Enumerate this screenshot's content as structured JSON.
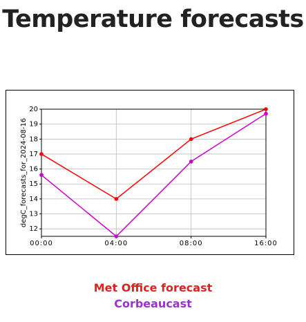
{
  "title": "Temperature forecasts",
  "chart_data": {
    "type": "line",
    "y_label": "degC_forecasts_for_2024-08-16",
    "categories": [
      "00:00",
      "04:00",
      "08:00",
      "16:00"
    ],
    "series": [
      {
        "name": "Met Office forecast",
        "color": "#ff0000",
        "label_color": "#dd2222",
        "values": [
          17,
          14,
          18,
          20
        ]
      },
      {
        "name": "Corbeaucast",
        "color": "#cc00cc",
        "label_color": "#9933cc",
        "values": [
          15.6,
          11.5,
          16.5,
          19.7
        ]
      }
    ],
    "ylim": [
      11.5,
      20
    ],
    "yticks": [
      12,
      13,
      14,
      15,
      16,
      17,
      18,
      19,
      20
    ],
    "grid": true
  }
}
